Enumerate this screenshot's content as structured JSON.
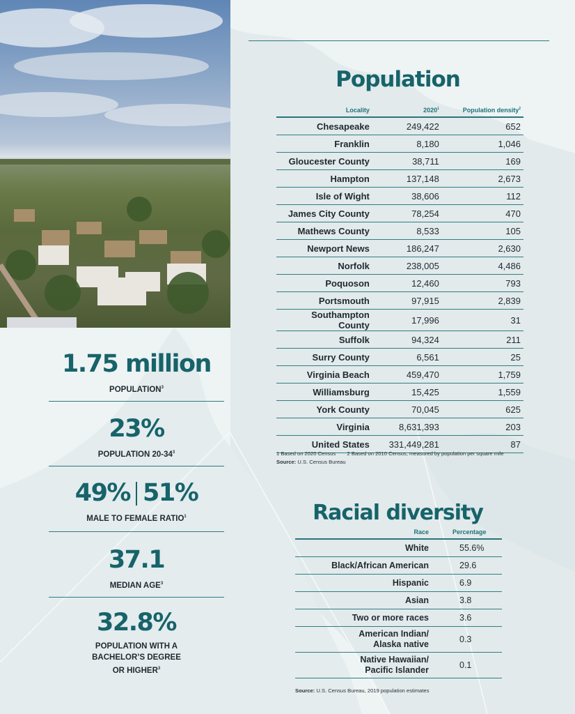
{
  "photo": {
    "description_icon": "aerial-neighborhood-photo"
  },
  "population": {
    "title": "Population",
    "headers": {
      "locality": "Locality",
      "year": "2020",
      "year_note": "1",
      "density": "Population density",
      "density_note": "2"
    },
    "rows": [
      {
        "locality": "Chesapeake",
        "pop": "249,422",
        "density": "652"
      },
      {
        "locality": "Franklin",
        "pop": "8,180",
        "density": "1,046"
      },
      {
        "locality": "Gloucester County",
        "pop": "38,711",
        "density": "169"
      },
      {
        "locality": "Hampton",
        "pop": "137,148",
        "density": "2,673"
      },
      {
        "locality": "Isle of Wight",
        "pop": "38,606",
        "density": "112"
      },
      {
        "locality": "James City County",
        "pop": "78,254",
        "density": "470"
      },
      {
        "locality": "Mathews County",
        "pop": "8,533",
        "density": "105"
      },
      {
        "locality": "Newport News",
        "pop": "186,247",
        "density": "2,630"
      },
      {
        "locality": "Norfolk",
        "pop": "238,005",
        "density": "4,486"
      },
      {
        "locality": "Poquoson",
        "pop": "12,460",
        "density": "793"
      },
      {
        "locality": "Portsmouth",
        "pop": "97,915",
        "density": "2,839"
      },
      {
        "locality": "Southampton County",
        "pop": "17,996",
        "density": "31"
      },
      {
        "locality": "Suffolk",
        "pop": "94,324",
        "density": "211"
      },
      {
        "locality": "Surry County",
        "pop": "6,561",
        "density": "25"
      },
      {
        "locality": "Virginia Beach",
        "pop": "459,470",
        "density": "1,759"
      },
      {
        "locality": "Williamsburg",
        "pop": "15,425",
        "density": "1,559"
      },
      {
        "locality": "York County",
        "pop": "70,045",
        "density": "625"
      },
      {
        "locality": "Virginia",
        "pop": "8,631,393",
        "density": "203"
      },
      {
        "locality": "United States",
        "pop": "331,449,281",
        "density": "87"
      }
    ],
    "footnote1": "1 Based on 2020 Census",
    "footnote2": "2 Based on 2010 Census, measured by population per square mile",
    "source_label": "Source:",
    "source_text": "U.S. Census Bureau"
  },
  "racial": {
    "title": "Racial diversity",
    "headers": {
      "race": "Race",
      "percentage": "Percentage"
    },
    "rows": [
      {
        "race": "White",
        "pct": "55.6%"
      },
      {
        "race": "Black/African American",
        "pct": "29.6"
      },
      {
        "race": "Hispanic",
        "pct": "6.9"
      },
      {
        "race": "Asian",
        "pct": "3.8"
      },
      {
        "race": "Two or more races",
        "pct": "3.6"
      },
      {
        "race": "American Indian/ Alaska native",
        "pct": "0.3"
      },
      {
        "race": "Native Hawaiian/ Pacific Islander",
        "pct": "0.1"
      }
    ],
    "source_label": "Source:",
    "source_text": "U.S. Census Bureau, 2019 population estimates"
  },
  "stats": [
    {
      "value": "1.75 million",
      "label": "POPULATION",
      "note": "3"
    },
    {
      "value": "23%",
      "label": "POPULATION 20-34",
      "note": "3"
    },
    {
      "value_left": "49%",
      "value_right": "51%",
      "label": "MALE TO FEMALE RATIO",
      "note": "1"
    },
    {
      "value": "37.1",
      "label": "MEDIAN AGE",
      "note": "3"
    },
    {
      "value": "32.8%",
      "label_lines": [
        "POPULATION WITH A",
        "BACHELOR’S DEGREE",
        "OR HIGHER"
      ],
      "note": "3"
    }
  ],
  "colors": {
    "accent": "#17636a",
    "rule": "#2d7a7d",
    "background": "#eef3f4"
  }
}
